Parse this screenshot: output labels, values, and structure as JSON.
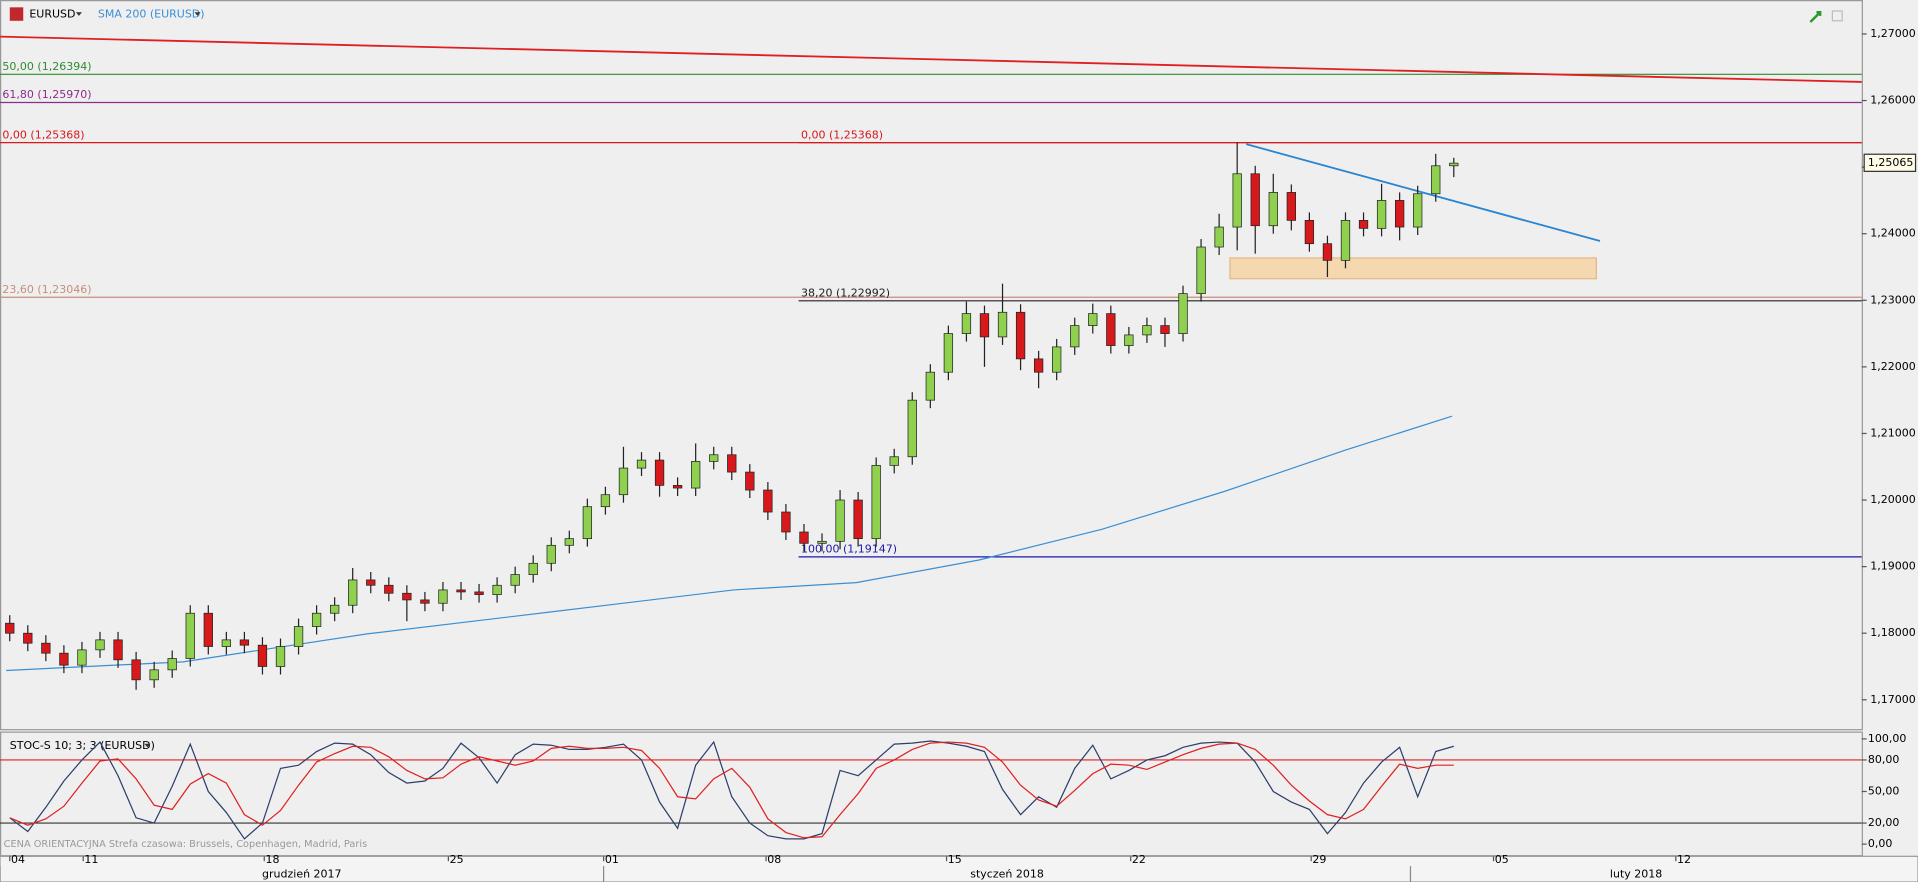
{
  "chart_data": {
    "type": "candlestick",
    "symbol": "EURUSD",
    "indicator": "SMA 200 (EURUSD)",
    "xlim": [
      -0.54,
      102.6
    ],
    "xticks": [
      {
        "value": 0,
        "label": "04"
      },
      {
        "value": 4.07,
        "label": "11"
      },
      {
        "value": 14.1,
        "label": "18"
      },
      {
        "value": 24.3,
        "label": "25"
      },
      {
        "value": 32.9,
        "label": "01"
      },
      {
        "value": 41.9,
        "label": "08"
      },
      {
        "value": 51.9,
        "label": "15"
      },
      {
        "value": 62.1,
        "label": "22"
      },
      {
        "value": 72.1,
        "label": "29"
      },
      {
        "value": 82.2,
        "label": "05"
      },
      {
        "value": 92.3,
        "label": "12"
      }
    ],
    "months": [
      {
        "value": -0.54,
        "end": 32.9,
        "label": "grudzień 2017"
      },
      {
        "value": 32.9,
        "end": 77.6,
        "label": "styczeń 2018"
      },
      {
        "value": 77.6,
        "end": 102.6,
        "label": "luty 2018"
      }
    ],
    "ylim": [
      1.1656,
      1.2751
    ],
    "yticks": [
      {
        "value": 1.27,
        "label": "1,27000"
      },
      {
        "value": 1.26,
        "label": "1,26000"
      },
      {
        "value": 1.25,
        "label": "1,25000"
      },
      {
        "value": 1.24,
        "label": "1,24000"
      },
      {
        "value": 1.23,
        "label": "1,23000"
      },
      {
        "value": 1.22,
        "label": "1,22000"
      },
      {
        "value": 1.21,
        "label": "1,21000"
      },
      {
        "value": 1.2,
        "label": "1,20000"
      },
      {
        "value": 1.19,
        "label": "1,19000"
      },
      {
        "value": 1.18,
        "label": "1,18000"
      },
      {
        "value": 1.17,
        "label": "1,17000"
      }
    ],
    "last_price": {
      "value": 1.25065,
      "label": "1,25065"
    },
    "up_color": "#8fd14f",
    "down_color": "#d7191c",
    "open": [
      1.1815,
      1.18,
      1.1785,
      1.177,
      1.1752,
      1.1775,
      1.179,
      1.176,
      1.173,
      1.1745,
      1.1762,
      1.183,
      1.178,
      1.179,
      1.1782,
      1.175,
      1.178,
      1.181,
      1.183,
      1.1842,
      1.188,
      1.1872,
      1.186,
      1.185,
      1.1845,
      1.1865,
      1.1862,
      1.1858,
      1.1872,
      1.1888,
      1.1905,
      1.1932,
      1.1942,
      1.199,
      1.2008,
      1.2048,
      1.206,
      1.2022,
      1.2018,
      1.2058,
      1.2068,
      1.2042,
      1.2015,
      1.1982,
      1.1952,
      1.1935,
      1.1938,
      1.2,
      1.1942,
      1.2052,
      1.2065,
      1.215,
      1.2192,
      1.225,
      1.228,
      1.2245,
      1.2282,
      1.2212,
      1.2192,
      1.223,
      1.2262,
      1.228,
      1.2232,
      1.2248,
      1.2262,
      1.225,
      1.231,
      1.238,
      1.241,
      1.249,
      1.2412,
      1.2462,
      1.242,
      1.2385,
      1.236,
      1.242,
      1.2408,
      1.245,
      1.241,
      1.246,
      1.2502
    ],
    "high": [
      1.1827,
      1.1812,
      1.1797,
      1.1782,
      1.1787,
      1.1802,
      1.1802,
      1.1772,
      1.1757,
      1.1774,
      1.1842,
      1.1842,
      1.1802,
      1.1802,
      1.1794,
      1.1792,
      1.1822,
      1.1842,
      1.1854,
      1.1898,
      1.1892,
      1.1884,
      1.1872,
      1.1862,
      1.1877,
      1.1877,
      1.1874,
      1.1884,
      1.19,
      1.1917,
      1.1944,
      1.1954,
      1.2002,
      1.202,
      1.208,
      1.2072,
      1.2072,
      1.2034,
      1.2085,
      1.208,
      1.208,
      1.2054,
      1.2027,
      1.1994,
      1.1964,
      1.195,
      1.2015,
      1.2012,
      1.2064,
      1.2077,
      1.2162,
      1.2204,
      1.2262,
      1.2298,
      1.2292,
      1.2325,
      1.2294,
      1.2224,
      1.2242,
      1.2274,
      1.2295,
      1.2292,
      1.226,
      1.2274,
      1.2274,
      1.2322,
      1.2392,
      1.243,
      1.2537,
      1.2502,
      1.249,
      1.2474,
      1.2432,
      1.2397,
      1.2432,
      1.2432,
      1.2475,
      1.2462,
      1.2472,
      1.252,
      1.2514
    ],
    "low": [
      1.1788,
      1.1773,
      1.1758,
      1.174,
      1.174,
      1.1763,
      1.1748,
      1.1715,
      1.1718,
      1.1733,
      1.175,
      1.1768,
      1.1768,
      1.177,
      1.1738,
      1.1738,
      1.1768,
      1.1798,
      1.1818,
      1.183,
      1.186,
      1.1848,
      1.1818,
      1.1833,
      1.1833,
      1.185,
      1.1846,
      1.1846,
      1.186,
      1.1876,
      1.1893,
      1.192,
      1.193,
      1.1978,
      1.1996,
      1.2036,
      1.2005,
      1.2006,
      1.2006,
      1.2046,
      1.203,
      1.2003,
      1.197,
      1.194,
      1.1923,
      1.1923,
      1.1926,
      1.193,
      1.193,
      1.204,
      1.2053,
      1.2138,
      1.218,
      1.2238,
      1.22,
      1.2233,
      1.2195,
      1.2168,
      1.218,
      1.2218,
      1.225,
      1.222,
      1.222,
      1.2236,
      1.223,
      1.2238,
      1.2298,
      1.2368,
      1.2375,
      1.237,
      1.24,
      1.2405,
      1.2373,
      1.2335,
      1.2348,
      1.2396,
      1.2396,
      1.239,
      1.2398,
      1.2448,
      1.2485
    ],
    "close": [
      1.18,
      1.1785,
      1.177,
      1.1752,
      1.1775,
      1.179,
      1.176,
      1.173,
      1.1745,
      1.1762,
      1.183,
      1.178,
      1.179,
      1.1782,
      1.175,
      1.178,
      1.181,
      1.183,
      1.1842,
      1.188,
      1.1872,
      1.186,
      1.185,
      1.1845,
      1.1865,
      1.1862,
      1.1858,
      1.1872,
      1.1888,
      1.1905,
      1.1932,
      1.1942,
      1.199,
      1.2008,
      1.2048,
      1.206,
      1.2022,
      1.2018,
      1.2058,
      1.2068,
      1.2042,
      1.2015,
      1.1982,
      1.1952,
      1.1935,
      1.1938,
      1.2,
      1.1942,
      1.2052,
      1.2065,
      1.215,
      1.2192,
      1.225,
      1.228,
      1.2245,
      1.2282,
      1.2212,
      1.2192,
      1.223,
      1.2262,
      1.228,
      1.2232,
      1.2248,
      1.2262,
      1.225,
      1.231,
      1.238,
      1.241,
      1.249,
      1.2412,
      1.2462,
      1.242,
      1.2385,
      1.236,
      1.242,
      1.2408,
      1.245,
      1.241,
      1.246,
      1.2502,
      1.2506
    ],
    "sma": {
      "color": "#3b8fd4",
      "x": [
        -0.2,
        9.6,
        19.8,
        30,
        40.1,
        46.9,
        53.7,
        60.5,
        67.3,
        74,
        79.9
      ],
      "values": [
        1.1744,
        1.1757,
        1.1799,
        1.1832,
        1.1865,
        1.1876,
        1.191,
        1.1956,
        1.2013,
        1.2075,
        1.2126
      ]
    },
    "levels": [
      {
        "value": 1.26394,
        "label": "50,00 (1,26394)",
        "color": "#2e8b2e",
        "from": -0.54
      },
      {
        "value": 1.2597,
        "label": "61,80 (1,25970)",
        "color": "#8b2d8b",
        "from": -0.54
      },
      {
        "value": 1.25368,
        "label": "0,00 (1,25368)",
        "color": "#d7191c",
        "from": -0.54
      },
      {
        "value": 1.25368,
        "label": "0,00 (1,25368)",
        "color": "#d7191c",
        "from": 43.7
      },
      {
        "value": 1.23046,
        "label": "23,60 (1,23046)",
        "color": "#c48f7a",
        "from": -0.54
      },
      {
        "value": 1.22992,
        "label": "38,20 (1,22992)",
        "color": "#222222",
        "from": 43.7
      },
      {
        "value": 1.19147,
        "label": "100,00 (1,19147)",
        "color": "#1a1aa8",
        "from": 43.7
      }
    ],
    "trendlines": [
      {
        "color": "#e02020",
        "x": [
          -0.54,
          102.6
        ],
        "values": [
          1.2696,
          1.2628
        ]
      },
      {
        "color": "#2a86d0",
        "x": [
          68.5,
          88.1
        ],
        "values": [
          1.25345,
          1.2389
        ]
      }
    ],
    "zone": {
      "color": "#f5d7b0",
      "x": [
        67.6,
        87.9
      ],
      "values": [
        1.23636,
        1.23324
      ]
    },
    "oscillator": {
      "title": "STOC-S 10; 3; 3 (EURUSD)",
      "ylim": [
        -11.6,
        107
      ],
      "yticks": [
        {
          "value": 100,
          "label": "100,00"
        },
        {
          "value": 80,
          "label": "80,00"
        },
        {
          "value": 50,
          "label": "50,00"
        },
        {
          "value": 20,
          "label": "20,00"
        },
        {
          "value": 0,
          "label": "0,00"
        }
      ],
      "series": [
        {
          "color": "#2b3f6b",
          "values": [
            25,
            12,
            35,
            60,
            80,
            97,
            65,
            25,
            20,
            55,
            95,
            50,
            30,
            5,
            20,
            72,
            75,
            88,
            96,
            95,
            85,
            68,
            58,
            60,
            72,
            96,
            82,
            58,
            85,
            95,
            94,
            90,
            90,
            92,
            95,
            80,
            40,
            15,
            75,
            97,
            45,
            20,
            8,
            5,
            5,
            10,
            70,
            65,
            80,
            95,
            96,
            98,
            96,
            93,
            88,
            52,
            28,
            45,
            35,
            72,
            94,
            62,
            70,
            80,
            84,
            92,
            96,
            97,
            96,
            78,
            50,
            40,
            33,
            10,
            30,
            58,
            78,
            92,
            45,
            88,
            93
          ]
        },
        {
          "color": "#e02020",
          "values": [
            25,
            18,
            24,
            36,
            58,
            79,
            81,
            62,
            37,
            33,
            57,
            67,
            58,
            28,
            18,
            32,
            56,
            78,
            86,
            93,
            92,
            83,
            70,
            62,
            63,
            76,
            83,
            79,
            75,
            79,
            91,
            93,
            91,
            91,
            92,
            89,
            72,
            45,
            43,
            62,
            72,
            54,
            24,
            11,
            6,
            7,
            28,
            48,
            72,
            80,
            90,
            96,
            97,
            96,
            92,
            78,
            56,
            42,
            36,
            51,
            67,
            76,
            75,
            71,
            78,
            85,
            91,
            95,
            96,
            90,
            75,
            56,
            41,
            28,
            24,
            33,
            55,
            76,
            72,
            75,
            75
          ]
        }
      ]
    },
    "footer": "CENA ORIENTACYJNA   Strefa czasowa: Brussels, Copenhagen, Madrid, Paris"
  }
}
